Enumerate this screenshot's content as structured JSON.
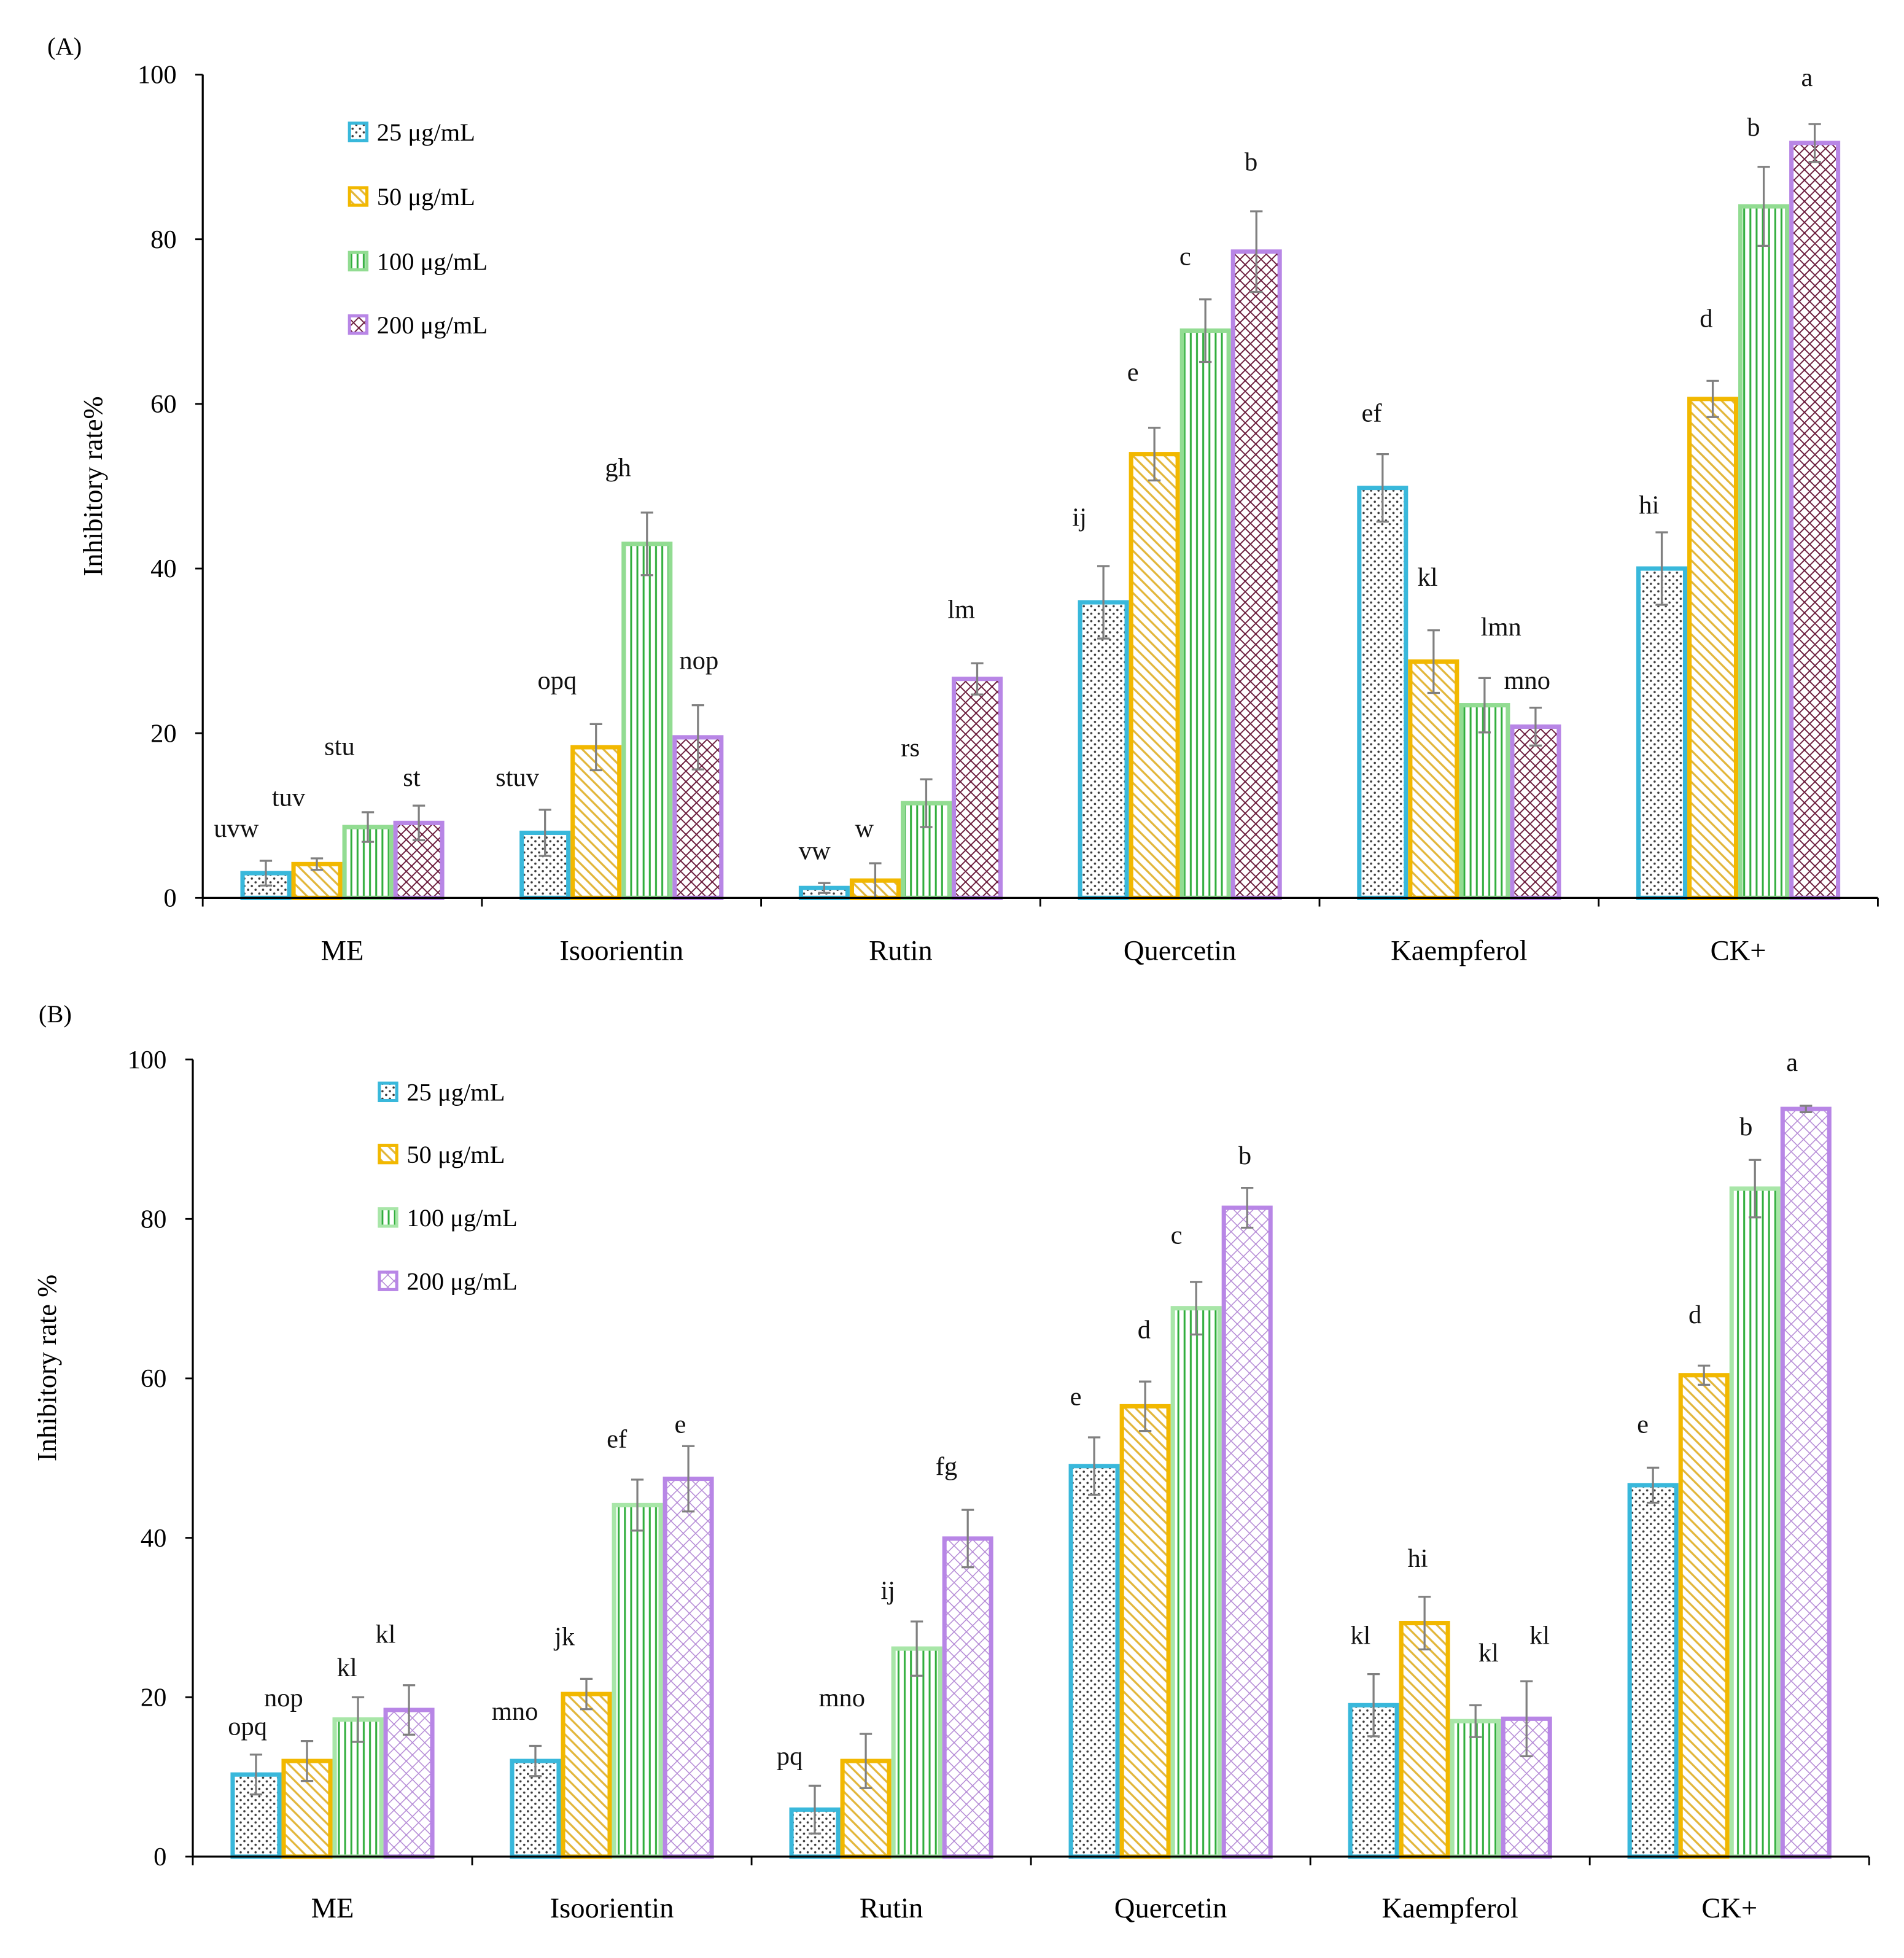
{
  "chart_data": [
    {
      "panel_label": "(A)",
      "type": "bar",
      "title": "",
      "xlabel": "",
      "ylabel": "Inhibitory rate%",
      "ylim": [
        0,
        100
      ],
      "yticks": [
        0,
        20,
        40,
        60,
        80,
        100
      ],
      "grid": false,
      "legend_position": "top-left",
      "categories": [
        "ME",
        "Isoorientin",
        "Rutin",
        "Quercetin",
        "Kaempferol",
        "CK+"
      ],
      "series": [
        {
          "name": "25 μg/mL",
          "color": "#39b8db",
          "values": [
            3.0,
            7.9,
            1.2,
            35.9,
            49.8,
            40.0
          ],
          "errors": [
            1.5,
            2.8,
            0.6,
            4.4,
            4.1,
            4.4
          ],
          "letters": [
            "uvw",
            "stuv",
            "vw",
            "ij",
            "ef",
            "hi"
          ]
        },
        {
          "name": "50 μg/mL",
          "color": "#f2b800",
          "values": [
            4.1,
            18.3,
            2.1,
            53.9,
            28.7,
            60.6
          ],
          "errors": [
            0.7,
            2.8,
            2.1,
            3.2,
            3.8,
            2.2
          ],
          "letters": [
            "tuv",
            "opq",
            "w",
            "e",
            "kl",
            "d"
          ]
        },
        {
          "name": "100 μg/mL",
          "color": "#92dc92",
          "values": [
            8.6,
            43.0,
            11.5,
            68.9,
            23.4,
            84.0
          ],
          "errors": [
            1.8,
            3.8,
            2.9,
            3.8,
            3.3,
            4.8
          ],
          "letters": [
            "stu",
            "gh",
            "rs",
            "c",
            "lmn",
            "b"
          ]
        },
        {
          "name": "200 μg/mL",
          "color": "#b886e6",
          "values": [
            9.1,
            19.5,
            26.6,
            78.5,
            20.8,
            91.7
          ],
          "errors": [
            2.1,
            3.9,
            1.9,
            4.9,
            2.3,
            2.3
          ],
          "letters": [
            "st",
            "nop",
            "lm",
            "b",
            "mno",
            "a"
          ]
        }
      ]
    },
    {
      "panel_label": "(B)",
      "type": "bar",
      "title": "",
      "xlabel": "",
      "ylabel": "Inhibitory rate %",
      "ylim": [
        0,
        100
      ],
      "yticks": [
        0,
        20,
        40,
        60,
        80,
        100
      ],
      "grid": false,
      "legend_position": "top-left",
      "categories": [
        "ME",
        "Isoorientin",
        "Rutin",
        "Quercetin",
        "Kaempferol",
        "CK+"
      ],
      "series": [
        {
          "name": "25 μg/mL",
          "color": "#39b8db",
          "values": [
            10.3,
            12.0,
            5.9,
            49.0,
            19.0,
            46.6
          ],
          "errors": [
            2.5,
            1.9,
            3.0,
            3.6,
            3.9,
            2.2
          ],
          "letters": [
            "opq",
            "mno",
            "pq",
            "e",
            "kl",
            "e"
          ]
        },
        {
          "name": "50 μg/mL",
          "color": "#f2b800",
          "values": [
            12.0,
            20.4,
            12.0,
            56.5,
            29.3,
            60.4
          ],
          "errors": [
            2.5,
            1.9,
            3.4,
            3.1,
            3.3,
            1.2
          ],
          "letters": [
            "nop",
            "jk",
            "mno",
            "d",
            "hi",
            "d"
          ]
        },
        {
          "name": "100 μg/mL",
          "color": "#a8e6a8",
          "values": [
            17.2,
            44.1,
            26.1,
            68.8,
            17.0,
            83.8
          ],
          "errors": [
            2.8,
            3.2,
            3.4,
            3.3,
            2.0,
            3.6
          ],
          "letters": [
            "kl",
            "ef",
            "ij",
            "c",
            "kl",
            "b"
          ]
        },
        {
          "name": "200 μg/mL",
          "color": "#b886e6",
          "values": [
            18.4,
            47.4,
            39.9,
            81.4,
            17.3,
            93.8
          ],
          "errors": [
            3.1,
            4.1,
            3.6,
            2.5,
            4.7,
            0.4
          ],
          "letters": [
            "kl",
            "e",
            "fg",
            "b",
            "kl",
            "a"
          ]
        }
      ]
    }
  ]
}
